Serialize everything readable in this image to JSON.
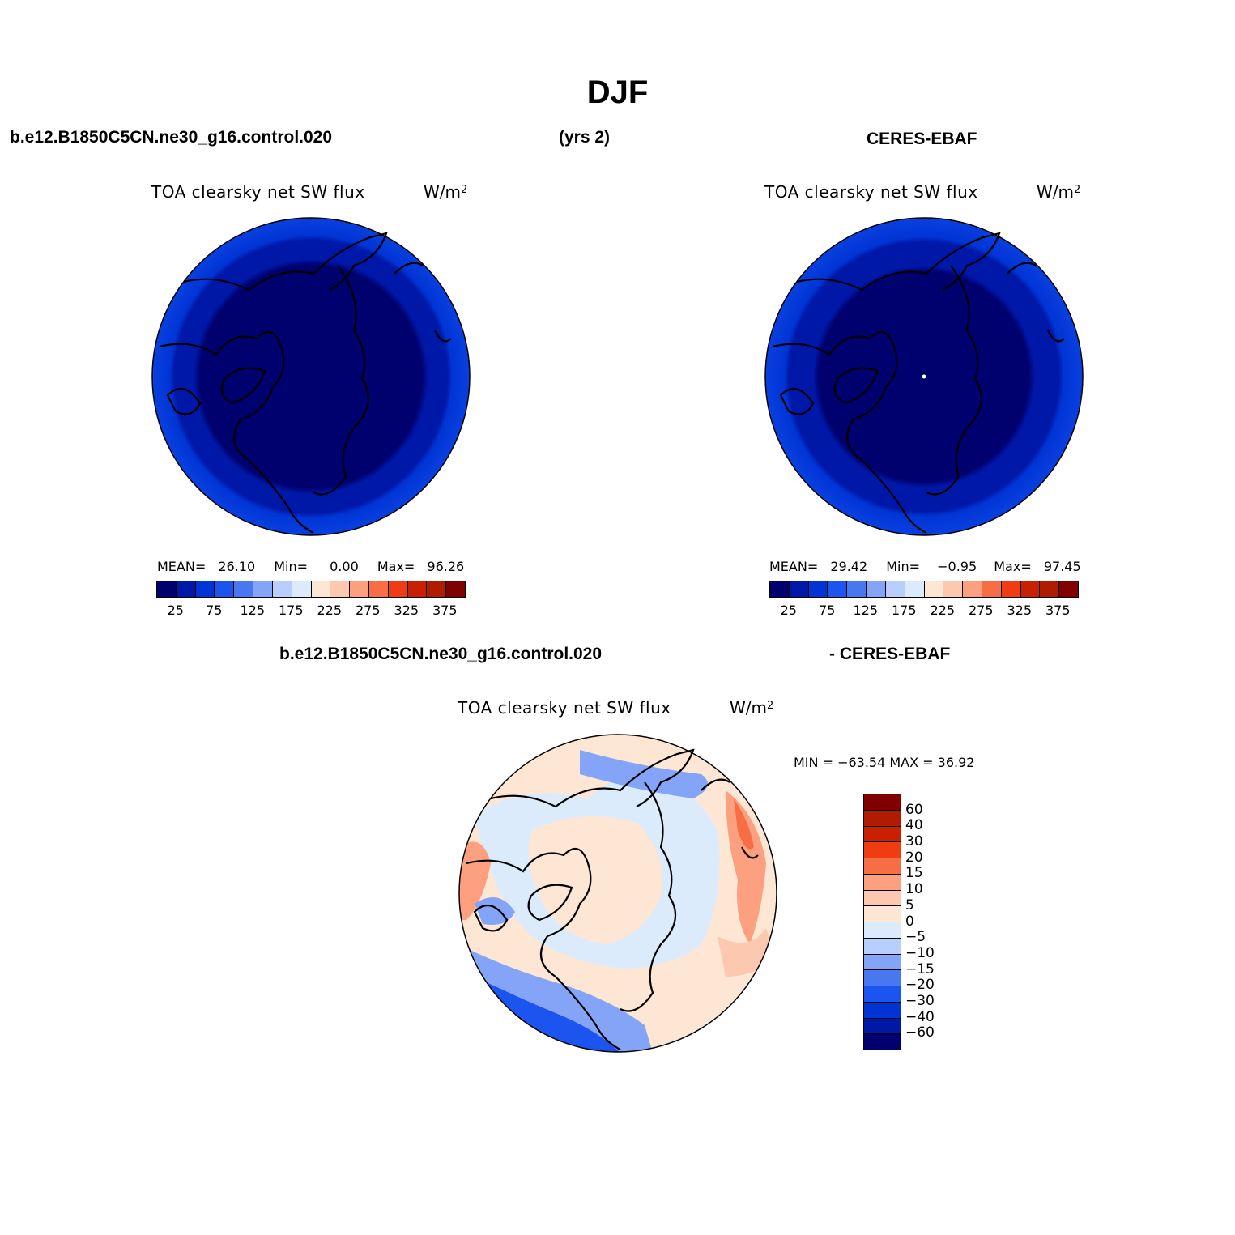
{
  "page": {
    "title": "DJF",
    "top_left_header": "b.e12.B1850C5CN.ne30_g16.control.020",
    "top_mid_header": "(yrs 2)",
    "top_right_header": "CERES-EBAF",
    "bottom_header_left": "b.e12.B1850C5CN.ne30_g16.control.020",
    "bottom_header_right": "- CERES-EBAF"
  },
  "panels": [
    {
      "variable": "TOA clearsky net SW flux",
      "units": "W/m",
      "units_exp": "2",
      "mean_label": "MEAN=",
      "mean_value": "26.10",
      "min_label": "Min=",
      "min_value": "0.00",
      "max_label": "Max=",
      "max_value": "96.26",
      "projection": "north polar stereographic",
      "pole_marker": false
    },
    {
      "variable": "TOA clearsky net SW flux",
      "units": "W/m",
      "units_exp": "2",
      "mean_label": "MEAN=",
      "mean_value": "29.42",
      "min_label": "Min=",
      "min_value": "−0.95",
      "max_label": "Max=",
      "max_value": "97.45",
      "projection": "north polar stereographic",
      "pole_marker": true
    },
    {
      "variable": "TOA clearsky net SW flux",
      "units": "W/m",
      "units_exp": "2",
      "minmax_label": "MIN = −63.54  MAX =   36.92",
      "projection": "north polar stereographic"
    }
  ],
  "colorbar_abs": {
    "colors": [
      "#00006e",
      "#0018a8",
      "#0034d4",
      "#1c54f0",
      "#4878f0",
      "#84a4f8",
      "#b8cefc",
      "#dcebfc",
      "#fde6d4",
      "#fcc8b0",
      "#fca080",
      "#f86e44",
      "#f03c14",
      "#c82000",
      "#b01c00",
      "#800000"
    ],
    "labels": [
      "25",
      "75",
      "125",
      "175",
      "225",
      "275",
      "325",
      "375"
    ]
  },
  "colorbar_diff": {
    "colors": [
      "#00006e",
      "#0018a8",
      "#0034d4",
      "#1c54f0",
      "#4878f0",
      "#84a4f8",
      "#b8cefc",
      "#dcebfc",
      "#fde6d4",
      "#fcc8b0",
      "#fca080",
      "#f86e44",
      "#f03c14",
      "#c82000",
      "#b01c00",
      "#800000"
    ],
    "labels": [
      "60",
      "40",
      "30",
      "20",
      "15",
      "10",
      "5",
      "0",
      "−5",
      "−10",
      "−15",
      "−20",
      "−30",
      "−40",
      "−60"
    ]
  }
}
